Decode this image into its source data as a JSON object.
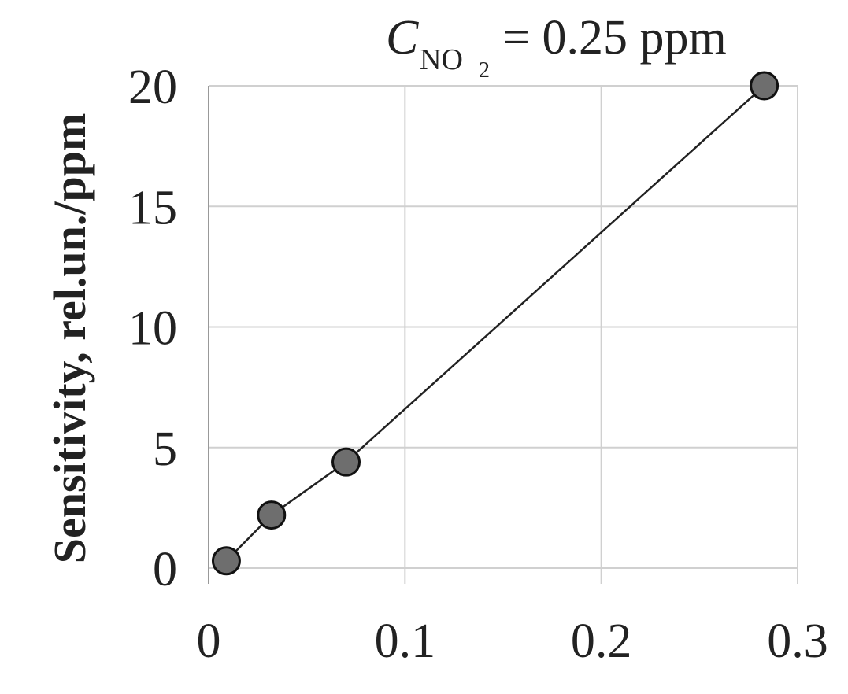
{
  "chart_data": {
    "type": "scatter",
    "annotation": {
      "symbol": "C",
      "subscript": "NO",
      "subsubscript": "2",
      "text": "= 0.25 ppm"
    },
    "ylabel": "Sensitivity, rel.un./ppm",
    "x": [
      0.009,
      0.032,
      0.07,
      0.283
    ],
    "series": [
      {
        "color": "#6e6e6e",
        "values": [
          0.3,
          2.2,
          4.4,
          20
        ]
      }
    ],
    "xlim": [
      0,
      0.3
    ],
    "xticks": [
      0,
      0.1,
      0.2,
      0.3
    ],
    "ylim": [
      0,
      20
    ],
    "yticks": [
      0,
      5,
      10,
      15,
      20
    ],
    "grid": true
  }
}
